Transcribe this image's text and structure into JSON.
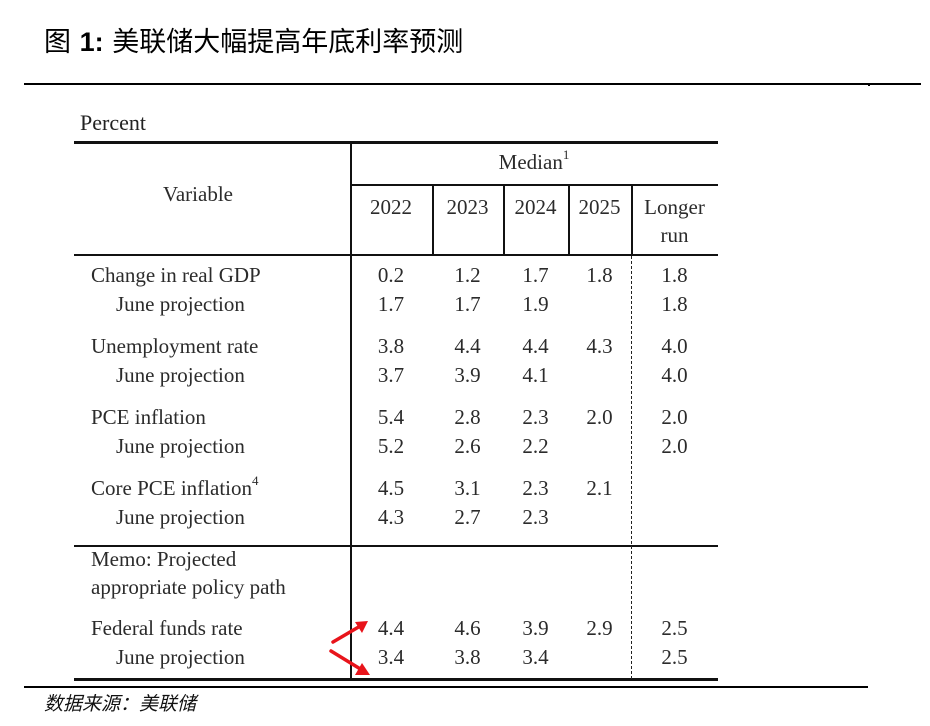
{
  "figure": {
    "label": "图 1:",
    "number_prefix": "图 ",
    "number": "1:",
    "title": "美联储大幅提高年底利率预测",
    "source": "数据来源：美联储"
  },
  "table": {
    "unit": "Percent",
    "header": {
      "variable": "Variable",
      "group": "Median",
      "group_footnote": "1",
      "columns": [
        "2022",
        "2023",
        "2024",
        "2025",
        "Longer",
        "run"
      ]
    },
    "rows": [
      {
        "label": "Change in real GDP",
        "footnote": "",
        "indent": false,
        "values": [
          "0.2",
          "1.2",
          "1.7",
          "1.8",
          "1.8"
        ]
      },
      {
        "label": "June projection",
        "footnote": "",
        "indent": true,
        "values": [
          "1.7",
          "1.7",
          "1.9",
          "",
          "1.8"
        ]
      },
      {
        "label": "Unemployment rate",
        "footnote": "",
        "indent": false,
        "values": [
          "3.8",
          "4.4",
          "4.4",
          "4.3",
          "4.0"
        ]
      },
      {
        "label": "June projection",
        "footnote": "",
        "indent": true,
        "values": [
          "3.7",
          "3.9",
          "4.1",
          "",
          "4.0"
        ]
      },
      {
        "label": "PCE inflation",
        "footnote": "",
        "indent": false,
        "values": [
          "5.4",
          "2.8",
          "2.3",
          "2.0",
          "2.0"
        ]
      },
      {
        "label": "June projection",
        "footnote": "",
        "indent": true,
        "values": [
          "5.2",
          "2.6",
          "2.2",
          "",
          "2.0"
        ]
      },
      {
        "label": "Core PCE inflation",
        "footnote": "4",
        "indent": false,
        "values": [
          "4.5",
          "3.1",
          "2.3",
          "2.1",
          ""
        ]
      },
      {
        "label": "June projection",
        "footnote": "",
        "indent": true,
        "values": [
          "4.3",
          "2.7",
          "2.3",
          "",
          ""
        ]
      }
    ],
    "memo": {
      "line1": "Memo: Projected",
      "line2": "appropriate policy path"
    },
    "memo_rows": [
      {
        "label": "Federal funds rate",
        "indent": false,
        "values": [
          "4.4",
          "4.6",
          "3.9",
          "2.9",
          "2.5"
        ]
      },
      {
        "label": "June projection",
        "indent": true,
        "values": [
          "3.4",
          "3.8",
          "3.4",
          "",
          "2.5"
        ]
      }
    ],
    "annotation_color": "#e8141b"
  }
}
